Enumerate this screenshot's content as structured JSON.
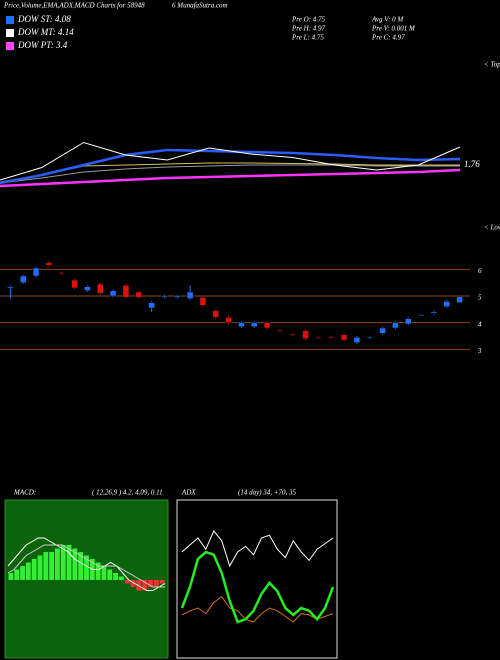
{
  "header": {
    "title": "Price,Volume,EMA,ADX,MACD Charts for 58948",
    "site": "6 MunafaSutra.com",
    "legend": [
      {
        "label": "DOW ST: 4.08",
        "color": "#1e6fff"
      },
      {
        "label": "DOW MT: 4.14",
        "color": "#ffffff"
      },
      {
        "label": "DOW PT: 3.4",
        "color": "#ff44ff"
      }
    ],
    "info": [
      "Pre O: 4.75",
      "Avg V: 0  M",
      "Pre H: 4.97",
      "Pre V: 0.001 M",
      "Pre L: 4.75",
      "Pre C: 4.97"
    ],
    "tops_label": "< Tops",
    "lows_label": "< Lows"
  },
  "chart_data": [
    {
      "type": "candlestick",
      "up_color": "#1e6fff",
      "down_color": "#e01010",
      "grid_color": "#8a4a1a",
      "open": [
        5.3,
        5.5,
        5.75,
        6.25,
        5.85,
        5.6,
        5.2,
        5.45,
        5.0,
        5.4,
        5.15,
        4.55,
        4.95,
        4.95,
        4.9,
        4.95,
        4.45,
        4.2,
        3.85,
        3.85,
        4.0,
        3.72,
        3.58,
        3.7,
        3.47,
        3.47,
        3.55,
        3.25,
        3.45,
        3.6,
        3.8,
        3.95,
        4.28,
        4.35,
        4.6,
        4.75
      ],
      "high": [
        5.4,
        5.8,
        6.1,
        6.3,
        5.9,
        5.65,
        5.4,
        5.5,
        5.25,
        5.45,
        5.2,
        4.8,
        5.05,
        5.05,
        5.4,
        5.0,
        4.5,
        4.25,
        4.05,
        4.05,
        4.05,
        3.75,
        3.62,
        3.75,
        3.5,
        3.5,
        3.6,
        3.5,
        3.5,
        3.85,
        4.05,
        4.2,
        4.33,
        4.45,
        4.85,
        4.97
      ],
      "low": [
        4.9,
        5.45,
        5.7,
        6.1,
        5.8,
        5.25,
        5.15,
        5.05,
        4.95,
        4.9,
        4.9,
        4.4,
        4.9,
        4.9,
        4.85,
        4.6,
        4.15,
        3.95,
        3.8,
        3.8,
        3.75,
        3.65,
        3.5,
        3.35,
        3.4,
        3.4,
        3.3,
        3.2,
        3.4,
        3.55,
        3.75,
        3.9,
        4.25,
        4.3,
        4.55,
        4.75
      ],
      "close": [
        5.35,
        5.75,
        6.05,
        6.15,
        5.82,
        5.3,
        5.35,
        5.1,
        5.2,
        4.95,
        4.95,
        4.75,
        5.0,
        5.0,
        5.15,
        4.65,
        4.2,
        4.0,
        4.0,
        4.0,
        3.8,
        3.7,
        3.55,
        3.4,
        3.45,
        3.45,
        3.35,
        3.45,
        3.47,
        3.8,
        4.0,
        4.15,
        4.3,
        4.4,
        4.8,
        4.97
      ],
      "ylim": [
        2.6,
        6.5
      ],
      "yticks": [
        3,
        4,
        5,
        6
      ]
    },
    {
      "type": "line",
      "annotation": "1.76",
      "ylim": [
        0,
        10
      ],
      "series": [
        {
          "name": "ema-magenta",
          "color": "#ff33ff",
          "width": 2.5,
          "values": [
            0.8,
            1.2,
            1.6,
            2.0,
            2.4,
            2.6,
            2.8,
            3.0,
            3.2,
            3.4,
            3.6,
            4.0
          ]
        },
        {
          "name": "ema-gray",
          "color": "#999999",
          "width": 1,
          "values": [
            1.4,
            2.4,
            3.6,
            4.2,
            4.6,
            4.8,
            5.0,
            5.0,
            5.0,
            4.8,
            4.8,
            4.8
          ]
        },
        {
          "name": "ema-yellow",
          "color": "#d8c060",
          "width": 1,
          "values": [
            1.6,
            3.0,
            4.8,
            5.0,
            5.2,
            5.4,
            5.4,
            5.3,
            5.2,
            5.0,
            5.0,
            5.0
          ]
        },
        {
          "name": "ema-blue",
          "color": "#2a5cff",
          "width": 2.5,
          "values": [
            1.4,
            3.0,
            5.0,
            7.0,
            8.0,
            7.8,
            7.6,
            7.4,
            7.0,
            6.4,
            6.0,
            6.2
          ]
        },
        {
          "name": "price-white",
          "color": "#ffffff",
          "width": 1,
          "values": [
            2.0,
            4.5,
            9.5,
            7.0,
            6.0,
            8.4,
            7.2,
            6.5,
            5.0,
            4.0,
            5.0,
            8.6
          ]
        }
      ]
    },
    {
      "type": "macd",
      "title": "MACD:",
      "subtitle": "( 12,26,9 ) 4.2, 4.09, 0.11",
      "ylim": [
        -20,
        20
      ],
      "pos_color": "#33ee33",
      "neg_color": "#ee3333",
      "histogram": [
        2,
        3,
        4,
        5,
        6,
        7,
        8,
        8,
        9,
        10,
        10,
        9,
        8,
        7,
        6,
        5,
        4,
        3,
        2,
        1,
        -1,
        -2,
        -3,
        -3,
        -2,
        -2,
        -1
      ],
      "series": [
        {
          "name": "macd",
          "color": "#ffffff",
          "values": [
            4,
            6,
            8,
            10,
            11,
            12,
            12,
            11,
            10,
            9,
            8,
            6,
            5,
            4,
            3,
            3,
            4,
            5,
            4,
            2,
            0,
            -1,
            -2,
            -3,
            -3,
            -2,
            -1
          ]
        },
        {
          "name": "signal",
          "color": "#cccccc",
          "values": [
            2,
            3,
            5,
            7,
            8,
            9,
            10,
            10,
            10,
            10,
            9,
            8,
            7,
            6,
            5,
            4,
            4,
            4,
            4,
            3,
            2,
            1,
            0,
            -1,
            -2,
            -2,
            -2
          ]
        }
      ]
    },
    {
      "type": "adx",
      "title": "ADX",
      "subtitle": "(14 day) 34, +70, 35",
      "ylim": [
        0,
        100
      ],
      "series": [
        {
          "name": "di-plus",
          "color": "#ffffff",
          "width": 1,
          "values": [
            70,
            75,
            80,
            72,
            85,
            78,
            60,
            70,
            74,
            68,
            80,
            82,
            72,
            66,
            78,
            70,
            64,
            72,
            76,
            80
          ]
        },
        {
          "name": "di-minus",
          "color": "#d07010",
          "width": 1,
          "values": [
            25,
            28,
            30,
            26,
            34,
            38,
            30,
            28,
            22,
            20,
            26,
            30,
            28,
            24,
            20,
            26,
            25,
            22,
            24,
            26
          ]
        },
        {
          "name": "adx",
          "color": "#22ee22",
          "width": 2.5,
          "values": [
            30,
            45,
            65,
            70,
            68,
            55,
            35,
            20,
            22,
            28,
            40,
            48,
            42,
            30,
            25,
            30,
            28,
            22,
            30,
            45
          ]
        }
      ]
    }
  ]
}
